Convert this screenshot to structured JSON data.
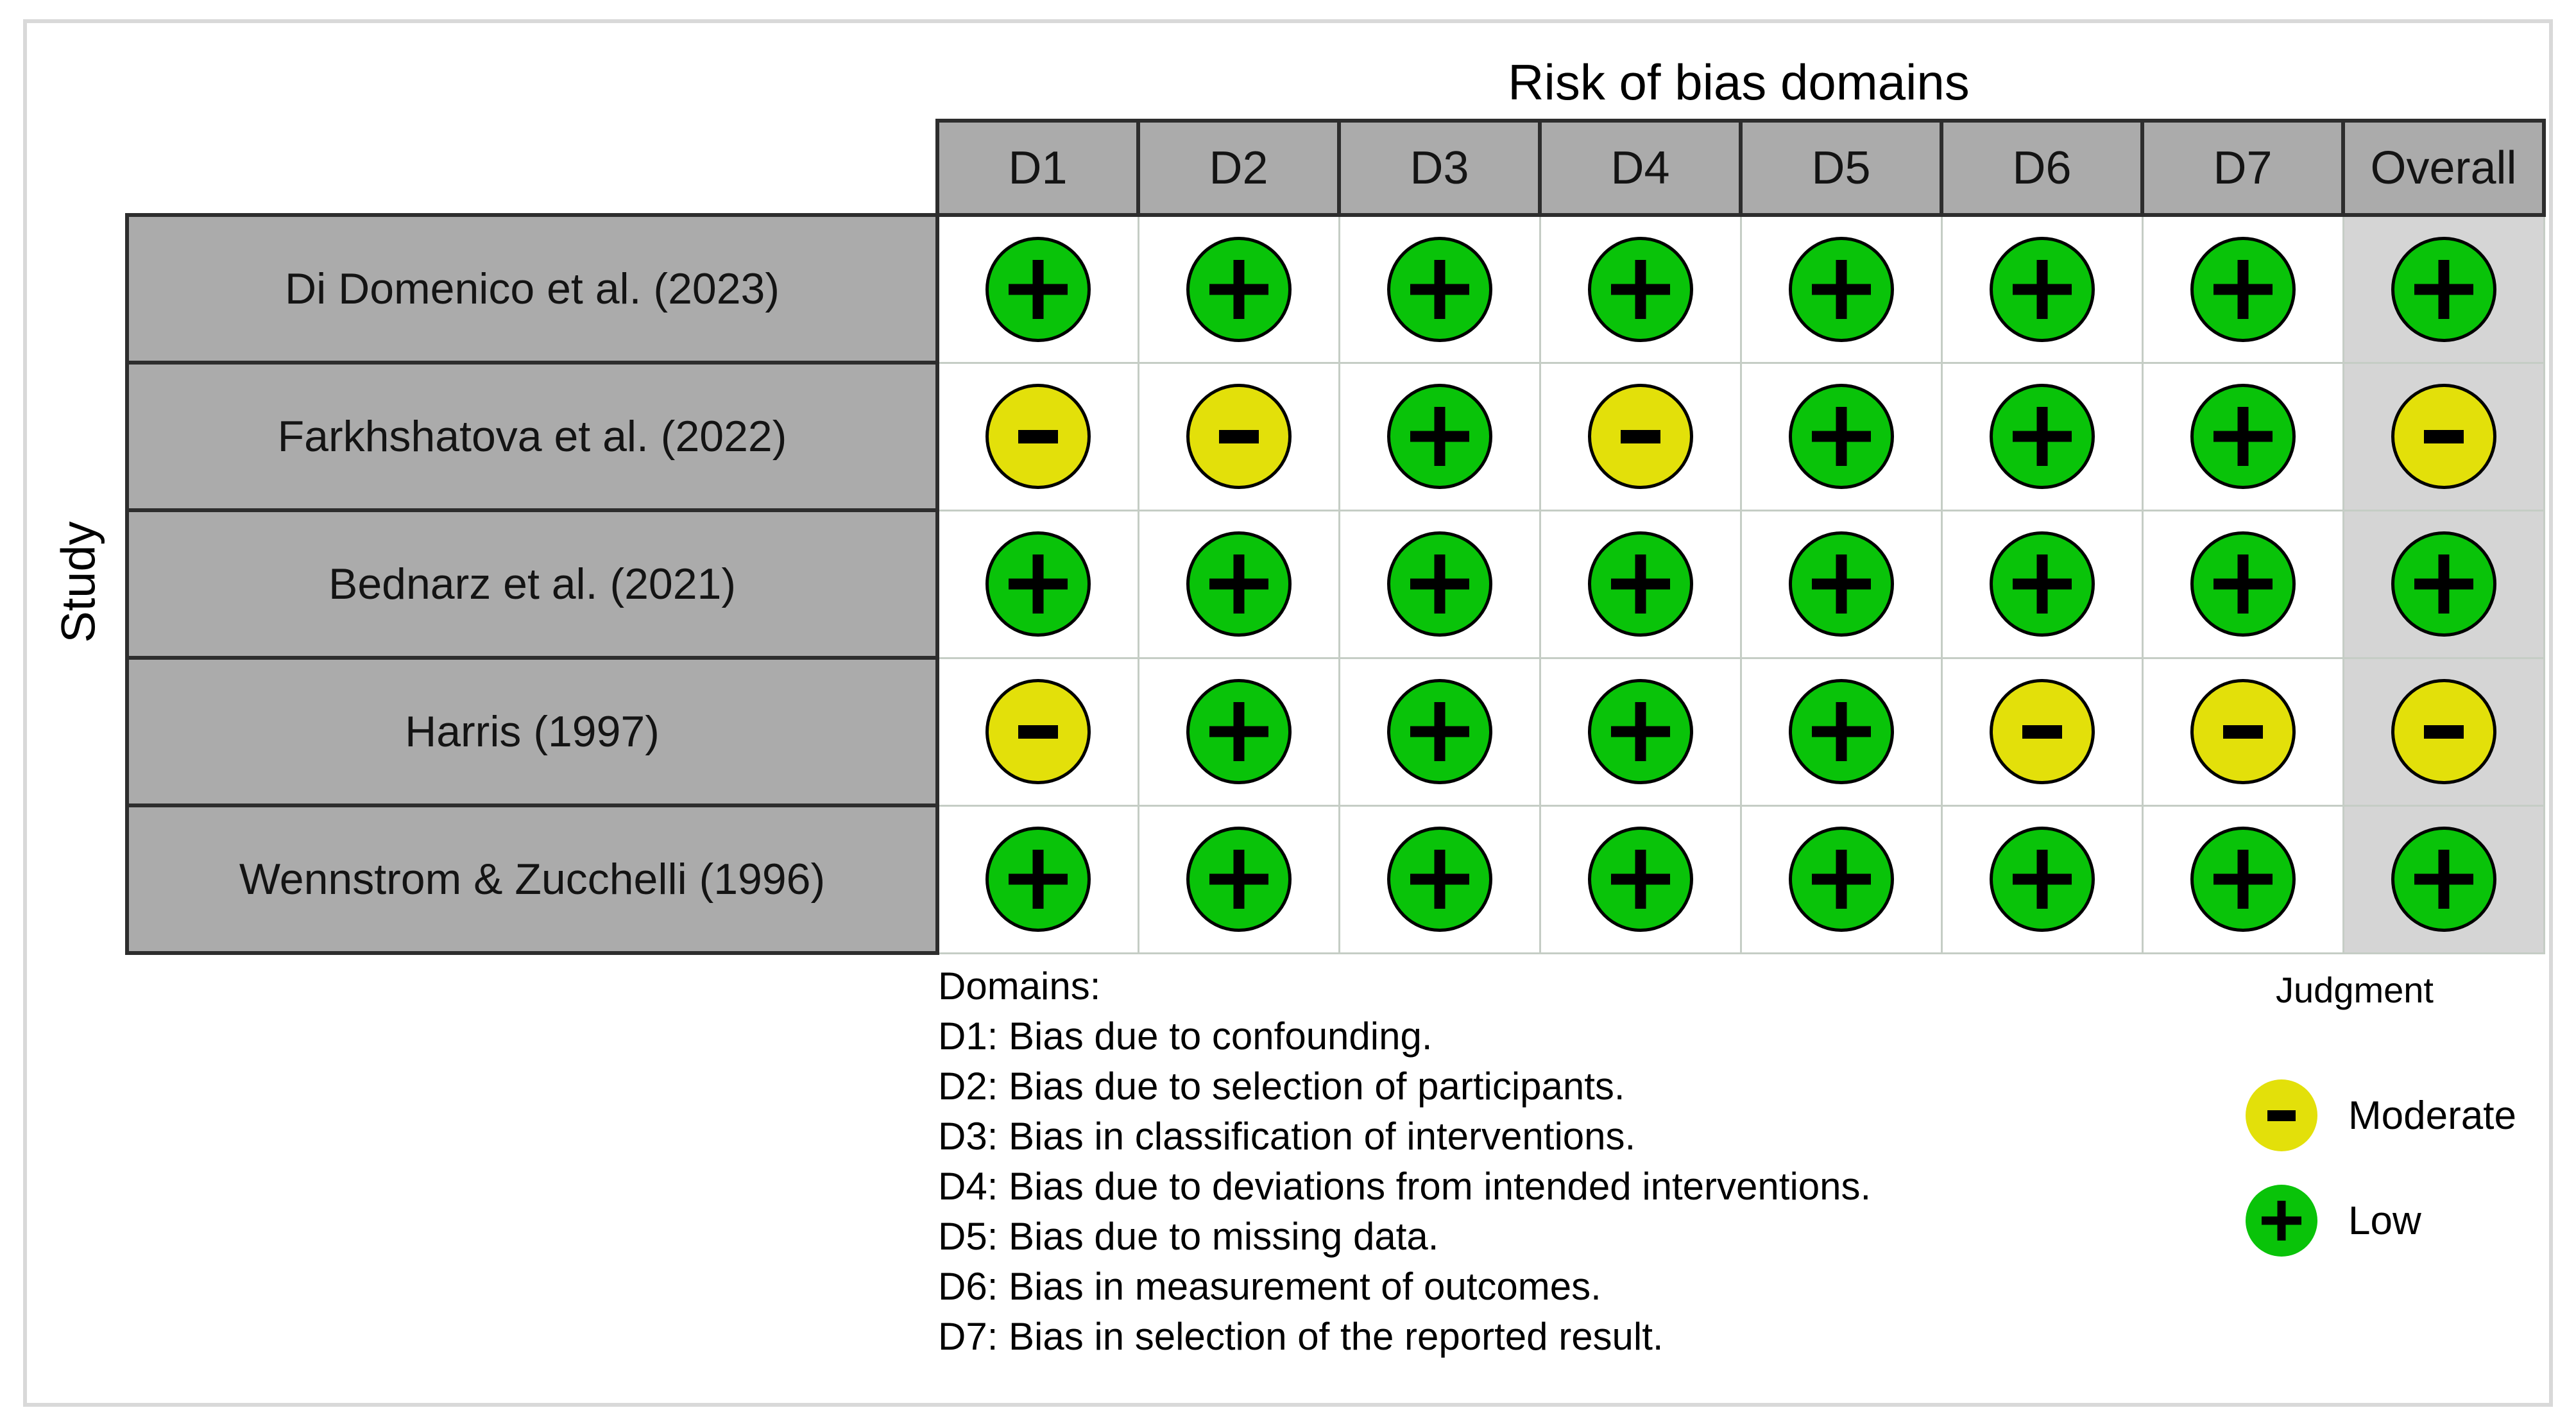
{
  "figure": {
    "title": "Risk of bias domains",
    "y_axis_label": "Study"
  },
  "table": {
    "columns": [
      "D1",
      "D2",
      "D3",
      "D4",
      "D5",
      "D6",
      "D7",
      "Overall"
    ],
    "rows": [
      {
        "study": "Di Domenico et al. (2023)",
        "judgments": [
          "low",
          "low",
          "low",
          "low",
          "low",
          "low",
          "low",
          "low"
        ]
      },
      {
        "study": "Farkhshatova et al. (2022)",
        "judgments": [
          "moderate",
          "moderate",
          "low",
          "moderate",
          "low",
          "low",
          "low",
          "moderate"
        ]
      },
      {
        "study": "Bednarz et al. (2021)",
        "judgments": [
          "low",
          "low",
          "low",
          "low",
          "low",
          "low",
          "low",
          "low"
        ]
      },
      {
        "study": "Harris (1997)",
        "judgments": [
          "moderate",
          "low",
          "low",
          "low",
          "low",
          "moderate",
          "moderate",
          "moderate"
        ]
      },
      {
        "study": "Wennstrom & Zucchelli (1996)",
        "judgments": [
          "low",
          "low",
          "low",
          "low",
          "low",
          "low",
          "low",
          "low"
        ]
      }
    ]
  },
  "legend": {
    "title": "Judgment",
    "items": [
      {
        "symbol": "-",
        "label": "Moderate",
        "judgment": "moderate",
        "color": "#e3e00a"
      },
      {
        "symbol": "+",
        "label": "Low",
        "judgment": "low",
        "color": "#09c309"
      }
    ]
  },
  "domains_note": {
    "heading": "Domains:",
    "lines": [
      "D1: Bias due to confounding.",
      "D2: Bias due to selection of participants.",
      "D3: Bias in classification of interventions.",
      "D4: Bias due to deviations from intended interventions.",
      "D5: Bias due to missing data.",
      "D6: Bias in measurement of outcomes.",
      "D7: Bias in selection of the reported result."
    ]
  },
  "colors": {
    "low": "#09c309",
    "moderate": "#e3e00a",
    "header_bg": "#ababab",
    "row_label_bg": "#ababab",
    "overall_col_bg": "#d5d5d5",
    "dark_border": "#2d2d2d",
    "light_border": "#c5cdc5",
    "frame_border": "#d9d9d9"
  },
  "chart_data": {
    "type": "table",
    "title": "Risk of bias domains",
    "x_categories": [
      "D1",
      "D2",
      "D3",
      "D4",
      "D5",
      "D6",
      "D7",
      "Overall"
    ],
    "y_categories": [
      "Di Domenico et al. (2023)",
      "Farkhshatova et al. (2022)",
      "Bednarz et al. (2021)",
      "Harris (1997)",
      "Wennstrom & Zucchelli (1996)"
    ],
    "y_axis_label": "Study",
    "values": [
      [
        "Low",
        "Low",
        "Low",
        "Low",
        "Low",
        "Low",
        "Low",
        "Low"
      ],
      [
        "Moderate",
        "Moderate",
        "Low",
        "Moderate",
        "Low",
        "Low",
        "Low",
        "Moderate"
      ],
      [
        "Low",
        "Low",
        "Low",
        "Low",
        "Low",
        "Low",
        "Low",
        "Low"
      ],
      [
        "Moderate",
        "Low",
        "Low",
        "Low",
        "Low",
        "Moderate",
        "Moderate",
        "Moderate"
      ],
      [
        "Low",
        "Low",
        "Low",
        "Low",
        "Low",
        "Low",
        "Low",
        "Low"
      ]
    ],
    "legend": {
      "title": "Judgment",
      "entries": [
        {
          "symbol": "-",
          "label": "Moderate"
        },
        {
          "symbol": "+",
          "label": "Low"
        }
      ]
    },
    "legend_position": "bottom-right",
    "footnote_heading": "Domains:",
    "footnotes": [
      "D1: Bias due to confounding.",
      "D2: Bias due to selection of participants.",
      "D3: Bias in classification of interventions.",
      "D4: Bias due to deviations from intended interventions.",
      "D5: Bias due to missing data.",
      "D6: Bias in measurement of outcomes.",
      "D7: Bias in selection of the reported result."
    ]
  }
}
